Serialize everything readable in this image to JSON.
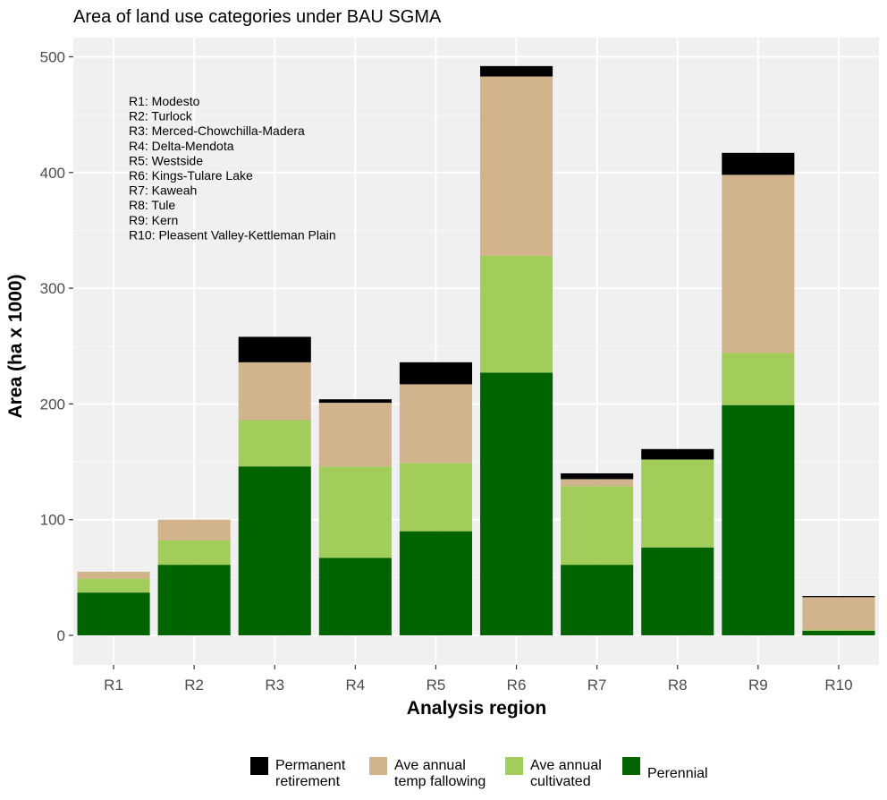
{
  "chart_data": {
    "type": "bar",
    "stacked": true,
    "title": "Area of land use categories under BAU SGMA",
    "xlabel": "Analysis region",
    "ylabel": "Area (ha x 1000)",
    "ylim": [
      0,
      520
    ],
    "yticks": [
      0,
      100,
      200,
      300,
      400,
      500
    ],
    "grid": true,
    "legend_position": "bottom",
    "categories": [
      "R1",
      "R2",
      "R3",
      "R4",
      "R5",
      "R6",
      "R7",
      "R8",
      "R9",
      "R10"
    ],
    "series": [
      {
        "name": "Perennial",
        "color": "#006400",
        "values": [
          37,
          61,
          146,
          67,
          90,
          227,
          61,
          76,
          199,
          4
        ]
      },
      {
        "name": "Ave annual cultivated",
        "color": "#a2cd5a",
        "values": [
          12,
          21,
          40,
          79,
          59,
          101,
          68,
          76,
          45,
          1
        ]
      },
      {
        "name": "Ave annual temp fallowing",
        "color": "#d2b48c",
        "values": [
          6,
          18,
          50,
          55,
          68,
          155,
          6,
          0,
          154,
          28
        ]
      },
      {
        "name": "Permanent retirement",
        "color": "#000000",
        "values": [
          0,
          0,
          22,
          3,
          19,
          9,
          5,
          9,
          19,
          1
        ]
      }
    ],
    "annotation_lines": [
      "R1: Modesto",
      "R2: Turlock",
      "R3: Merced-Chowchilla-Madera",
      "R4: Delta-Mendota",
      "R5: Westside",
      "R6: Kings-Tulare Lake",
      "R7: Kaweah",
      "R8: Tule",
      "R9: Kern",
      "R10: Pleasent Valley-Kettleman Plain"
    ],
    "legend": [
      {
        "series": "Permanent retirement",
        "lines": [
          "Permanent",
          "retirement"
        ]
      },
      {
        "series": "Ave annual temp fallowing",
        "lines": [
          "Ave annual",
          "temp fallowing"
        ]
      },
      {
        "series": "Ave annual cultivated",
        "lines": [
          "Ave annual",
          "cultivated"
        ]
      },
      {
        "series": "Perennial",
        "lines": [
          "Perennial"
        ]
      }
    ]
  }
}
